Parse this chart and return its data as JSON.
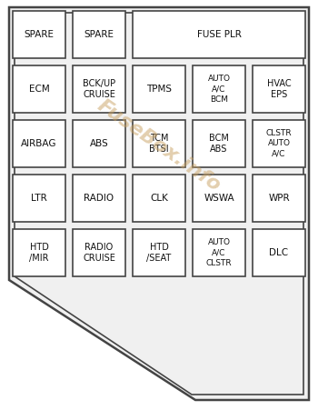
{
  "bg_color": "#f0f0f0",
  "inner_bg": "#f0f0f0",
  "box_bg": "#ffffff",
  "box_border": "#444444",
  "outer_border": "#444444",
  "text_color": "#111111",
  "watermark": "FuseBox.info",
  "watermark_color": "#c8a060",
  "rows": [
    [
      {
        "label": "SPARE",
        "colspan": 1
      },
      {
        "label": "SPARE",
        "colspan": 1
      },
      {
        "label": "FUSE PLR",
        "colspan": 3
      }
    ],
    [
      {
        "label": "ECM",
        "colspan": 1
      },
      {
        "label": "BCK/UP\nCRUISE",
        "colspan": 1
      },
      {
        "label": "TPMS",
        "colspan": 1
      },
      {
        "label": "AUTO\nA/C\nBCM",
        "colspan": 1
      },
      {
        "label": "HVAC\nEPS",
        "colspan": 1
      }
    ],
    [
      {
        "label": "AIRBAG",
        "colspan": 1
      },
      {
        "label": "ABS",
        "colspan": 1
      },
      {
        "label": "TCM\nBTSI",
        "colspan": 1
      },
      {
        "label": "BCM\nABS",
        "colspan": 1
      },
      {
        "label": "CLSTR\nAUTO\nA/C",
        "colspan": 1
      }
    ],
    [
      {
        "label": "LTR",
        "colspan": 1
      },
      {
        "label": "RADIO",
        "colspan": 1
      },
      {
        "label": "CLK",
        "colspan": 1
      },
      {
        "label": "WSWA",
        "colspan": 1
      },
      {
        "label": "WPR",
        "colspan": 1
      }
    ],
    [
      {
        "label": "HTD\n/MIR",
        "colspan": 1
      },
      {
        "label": "RADIO\nCRUISE",
        "colspan": 1
      },
      {
        "label": "HTD\n/SEAT",
        "colspan": 1
      },
      {
        "label": "AUTO\nA/C\nCLSTR",
        "colspan": 1
      },
      {
        "label": "DLC",
        "colspan": 1
      }
    ]
  ],
  "num_cols": 5,
  "figsize": [
    3.5,
    4.51
  ],
  "dpi": 100
}
